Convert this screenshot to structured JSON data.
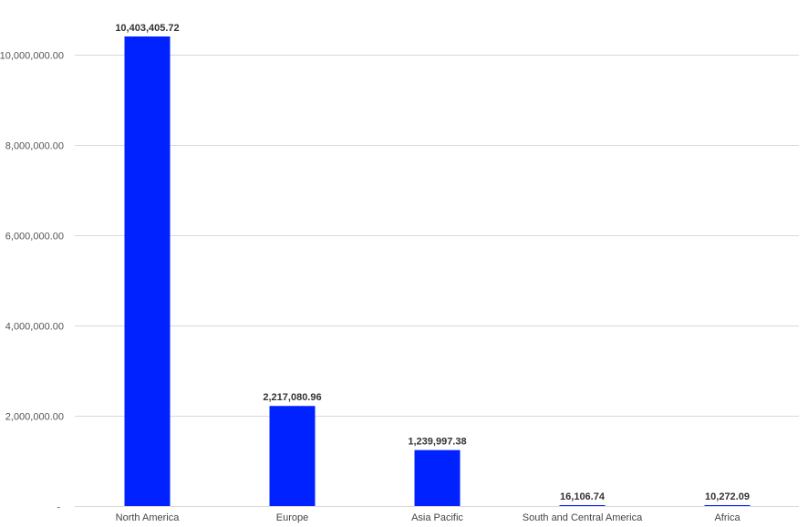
{
  "chart_data": {
    "type": "bar",
    "title": "",
    "xlabel": "",
    "ylabel": "",
    "categories": [
      "North America",
      "Europe",
      "Asia Pacific",
      "South and Central America",
      "Africa"
    ],
    "values": [
      10403405.72,
      2217080.96,
      1239997.38,
      16106.74,
      10272.09
    ],
    "data_labels": [
      "10,403,405.72",
      "2,217,080.96",
      "1,239,997.38",
      "16,106.74",
      "10,272.09"
    ],
    "yticks": [
      0,
      2000000,
      4000000,
      6000000,
      8000000,
      10000000
    ],
    "ytick_labels": [
      "-",
      "2,000,000.00",
      "4,000,000.00",
      "6,000,000.00",
      "8,000,000.00",
      "10,000,000.00"
    ],
    "ylim": [
      0,
      10403405.72
    ],
    "grid": true,
    "legend": "none",
    "bar_color": "#0022ff"
  }
}
